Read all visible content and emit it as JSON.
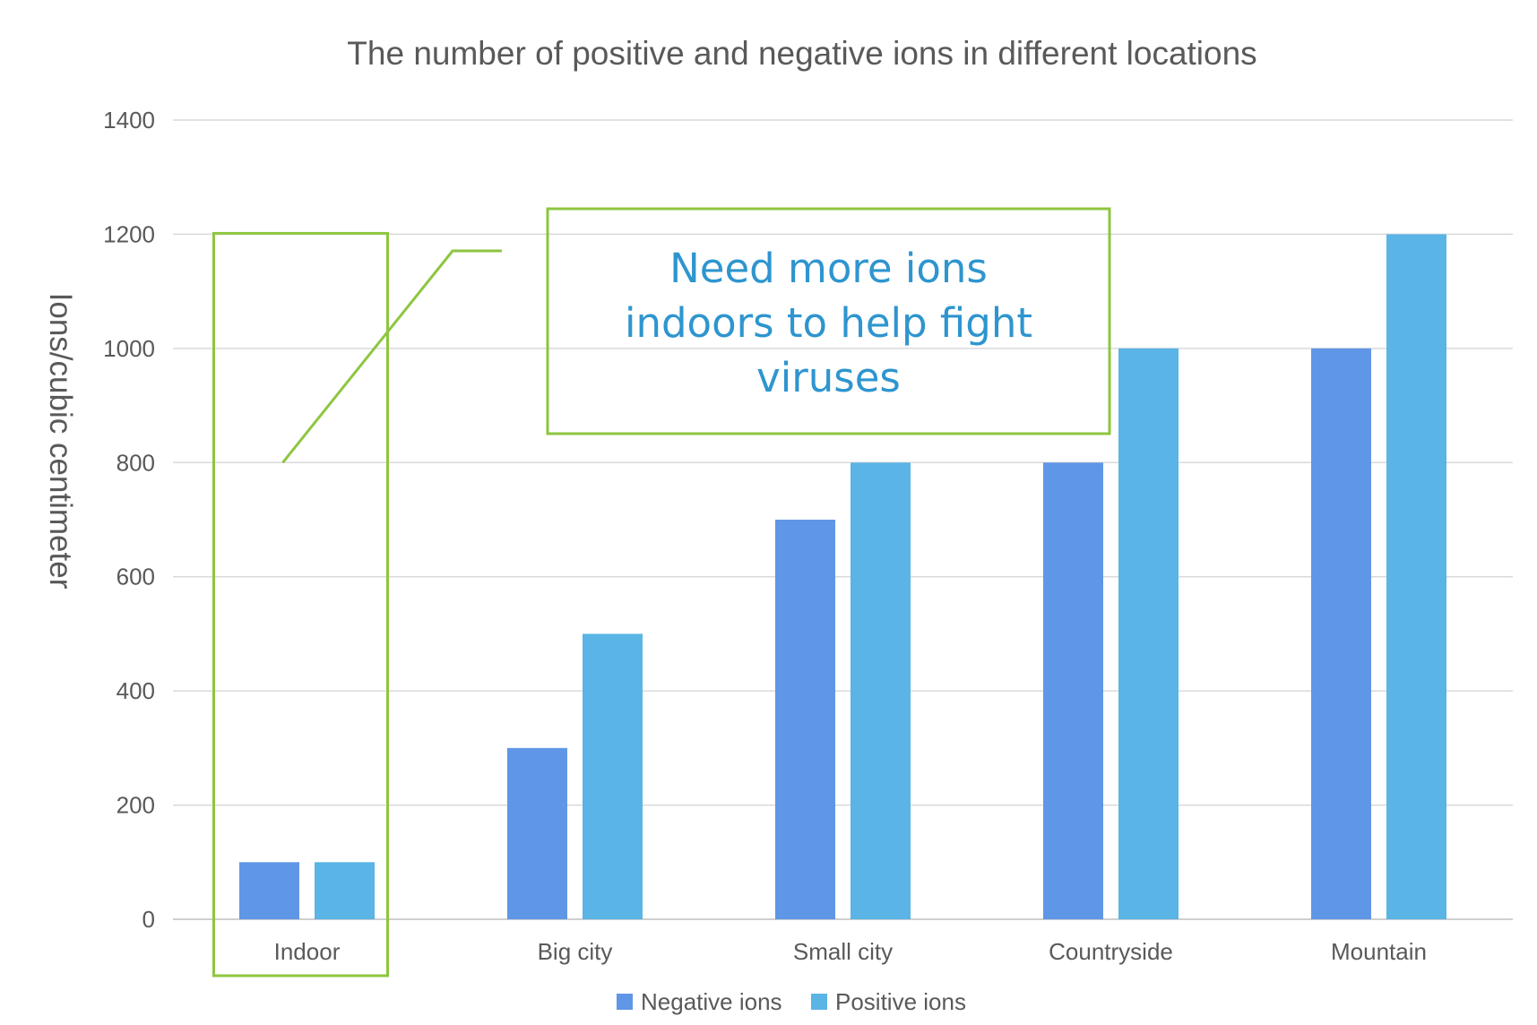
{
  "chart_data": {
    "type": "bar",
    "title": "The number of positive and negative ions in different locations",
    "xlabel": "",
    "ylabel": "Ions/cubic centimeter",
    "ylim": [
      0,
      1400
    ],
    "yticks": [
      0,
      200,
      400,
      600,
      800,
      1000,
      1200,
      1400
    ],
    "grid": true,
    "legend_position": "bottom",
    "categories": [
      "Indoor",
      "Big city",
      "Small city",
      "Countryside",
      "Mountain"
    ],
    "series": [
      {
        "name": "Negative ions",
        "color": "#6096e6",
        "values": [
          100,
          300,
          700,
          800,
          1000
        ]
      },
      {
        "name": "Positive ions",
        "color": "#5ab4e5",
        "values": [
          100,
          500,
          800,
          1000,
          1200
        ]
      }
    ],
    "annotations": {
      "callout_lines": [
        "Need more ions",
        "indoors to help fight",
        "viruses"
      ],
      "callout_color": "#2e95cf",
      "highlight_color": "#8dc63f",
      "highlight_category": "Indoor"
    }
  }
}
